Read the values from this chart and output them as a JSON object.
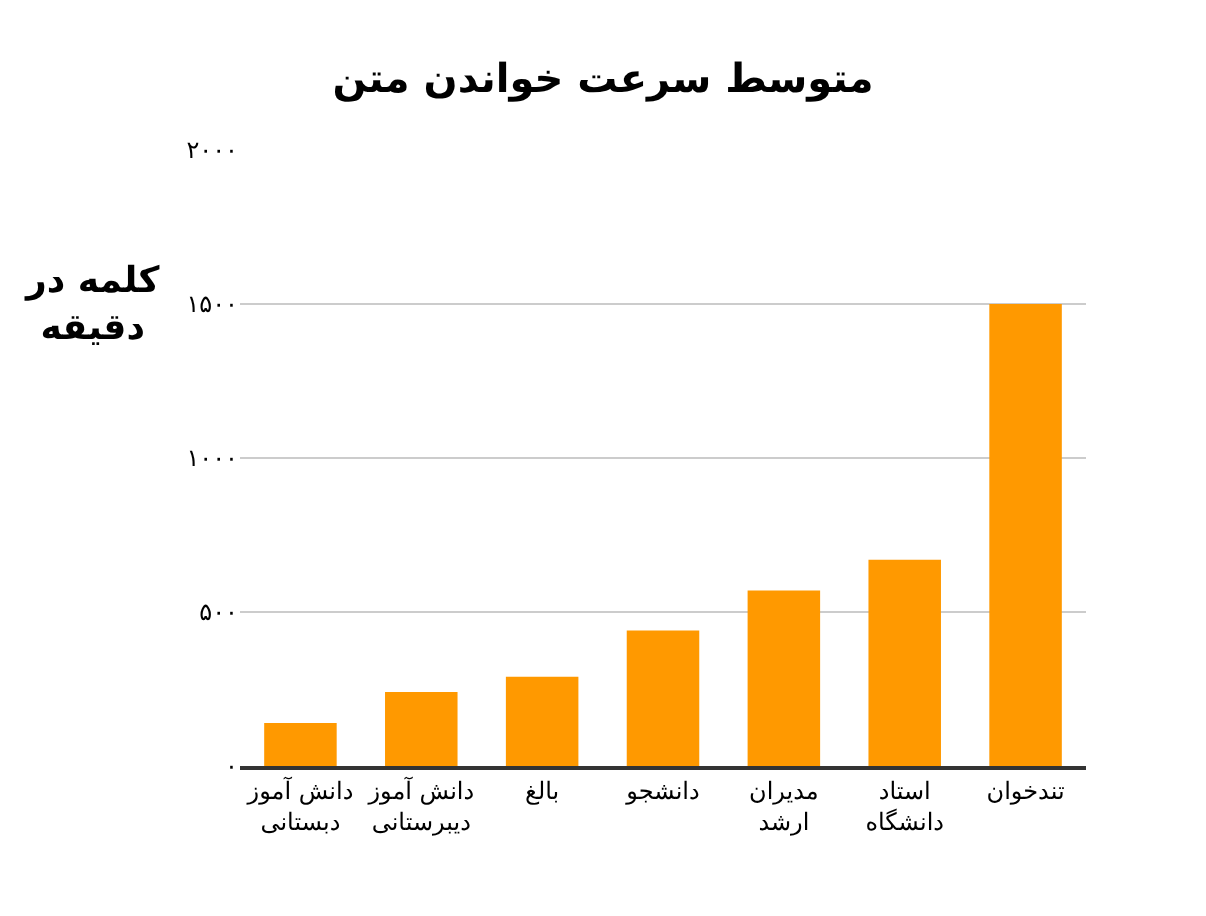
{
  "chart_data": {
    "type": "bar",
    "title": "متوسط سرعت خواندن متن",
    "ylabel": "کلمه در\nدقیقه",
    "categories": [
      "دانش آموز\nدبستانی",
      "دانش آموز\nدیبرستانی",
      "بالغ",
      "دانشجو",
      "مدیران\nارشد",
      "استاد\nدانشگاه",
      "تندخوان"
    ],
    "values": [
      140,
      240,
      290,
      440,
      570,
      670,
      1500
    ],
    "color": "#ff9900",
    "ylim": [
      0,
      2000
    ],
    "yticks": [
      {
        "value": 0,
        "label": "۰"
      },
      {
        "value": 500,
        "label": "۵۰۰"
      },
      {
        "value": 1000,
        "label": "۱۰۰۰"
      },
      {
        "value": 1500,
        "label": "۱۵۰۰"
      },
      {
        "value": 2000,
        "label": "۲۰۰۰"
      }
    ],
    "grid": "y",
    "legend": false
  }
}
